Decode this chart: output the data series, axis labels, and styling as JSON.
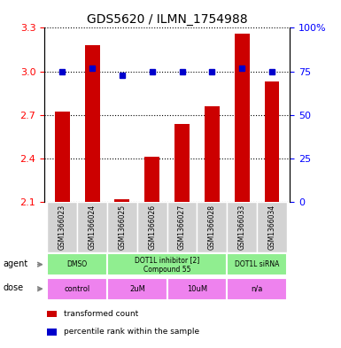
{
  "title": "GDS5620 / ILMN_1754988",
  "samples": [
    "GSM1366023",
    "GSM1366024",
    "GSM1366025",
    "GSM1366026",
    "GSM1366027",
    "GSM1366028",
    "GSM1366033",
    "GSM1366034"
  ],
  "bar_values": [
    2.72,
    3.18,
    2.12,
    2.41,
    2.64,
    2.76,
    3.26,
    2.93
  ],
  "percentile_y": [
    3.0,
    3.02,
    2.97,
    3.0,
    3.0,
    3.0,
    3.02,
    3.0
  ],
  "ylim": [
    2.1,
    3.3
  ],
  "ylim_right": [
    0,
    100
  ],
  "yticks_left": [
    2.1,
    2.4,
    2.7,
    3.0,
    3.3
  ],
  "yticks_right": [
    0,
    25,
    50,
    75,
    100
  ],
  "bar_color": "#cc0000",
  "dot_color": "#0000cc",
  "bar_width": 0.5,
  "agent_groups": [
    {
      "label": "DMSO",
      "start": 0,
      "end": 2,
      "color": "#90ee90"
    },
    {
      "label": "DOT1L inhibitor [2]\nCompound 55",
      "start": 2,
      "end": 6,
      "color": "#90ee90"
    },
    {
      "label": "DOT1L siRNA",
      "start": 6,
      "end": 8,
      "color": "#90ee90"
    }
  ],
  "dose_groups": [
    {
      "label": "control",
      "start": 0,
      "end": 2,
      "color": "#ee82ee"
    },
    {
      "label": "2uM",
      "start": 2,
      "end": 4,
      "color": "#ee82ee"
    },
    {
      "label": "10uM",
      "start": 4,
      "end": 6,
      "color": "#ee82ee"
    },
    {
      "label": "n/a",
      "start": 6,
      "end": 8,
      "color": "#ee82ee"
    }
  ],
  "legend_items": [
    {
      "color": "#cc0000",
      "label": "transformed count"
    },
    {
      "color": "#0000cc",
      "label": "percentile rank within the sample"
    }
  ],
  "sample_box_color": "#d3d3d3"
}
